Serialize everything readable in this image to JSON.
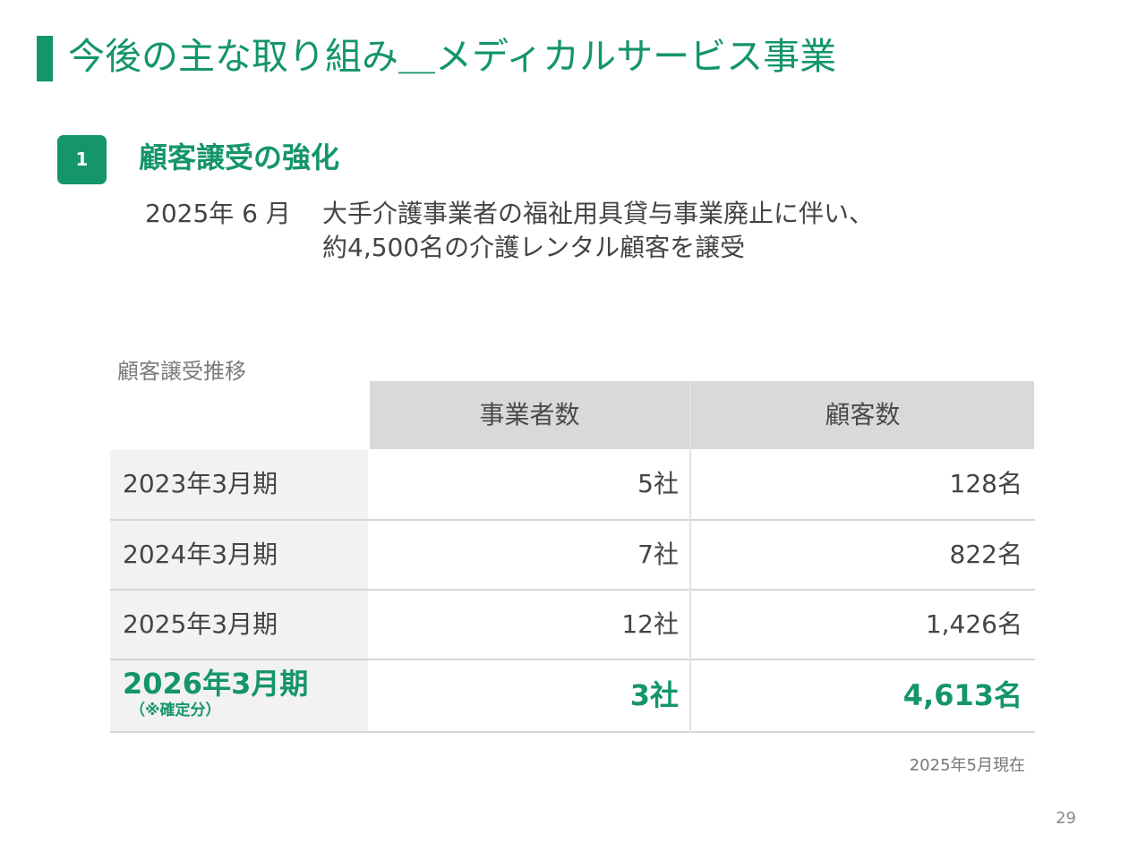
{
  "header": {
    "title": "今後の主な取り組み＿メディカルサービス事業"
  },
  "section": {
    "number": "1",
    "heading": "顧客譲受の強化",
    "date": "2025年 6 月",
    "lines": [
      "大手介護事業者の福祉用具貸与事業廃止に伴い、",
      "約4,500名の介護レンタル顧客を譲受"
    ]
  },
  "table": {
    "caption": "顧客譲受推移",
    "headers": [
      "事業者数",
      "顧客数"
    ],
    "rows": [
      {
        "period": "2023年3月期",
        "companies": "5社",
        "customers": "128名"
      },
      {
        "period": "2024年3月期",
        "companies": "7社",
        "customers": "822名"
      },
      {
        "period": "2025年3月期",
        "companies": "12社",
        "customers": "1,426名"
      },
      {
        "period": "2026年3月期",
        "note": "（※確定分）",
        "companies": "3社",
        "customers": "4,613名"
      }
    ]
  },
  "footer": {
    "as_of": "2025年5月現在",
    "page_number": "29"
  },
  "colors": {
    "accent": "#14956a",
    "header_bg": "#d9d9d9",
    "label_bg": "#f2f2f2"
  }
}
